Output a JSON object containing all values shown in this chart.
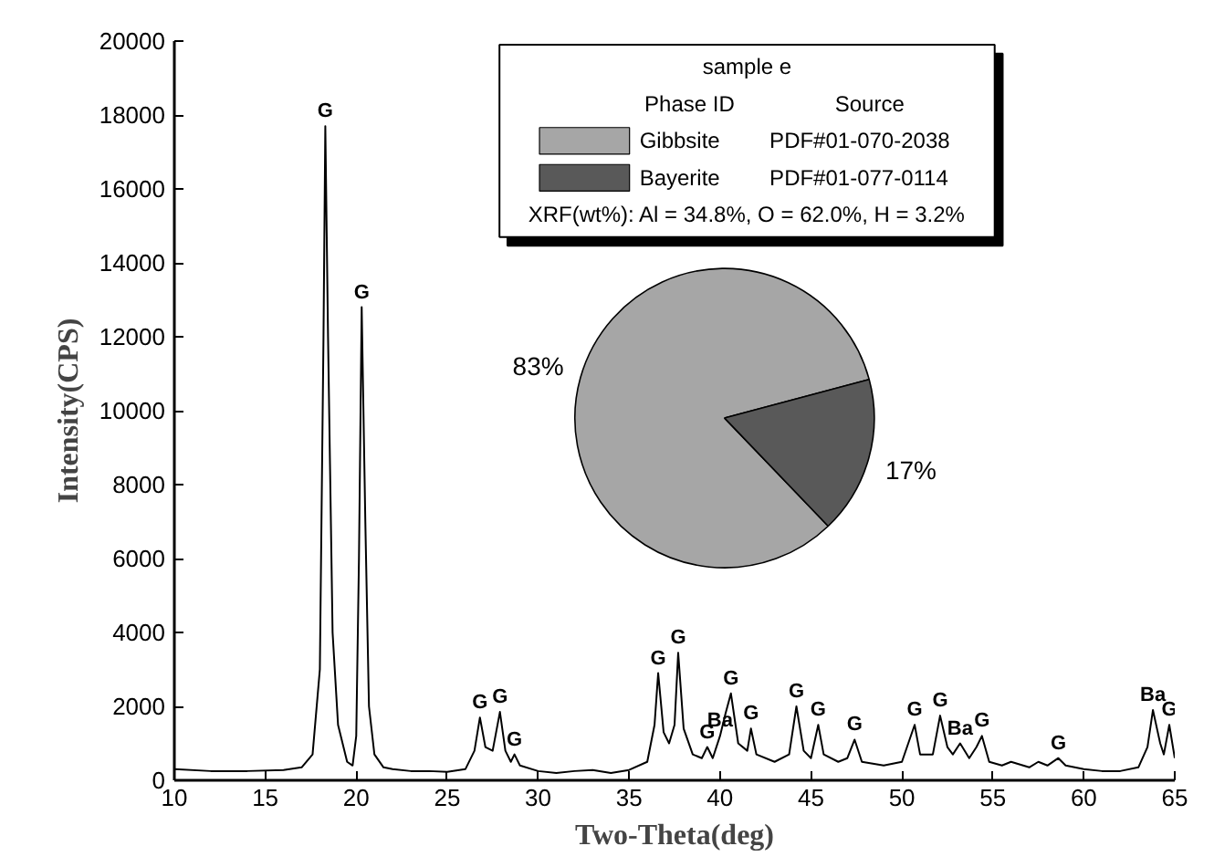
{
  "chart_data": [
    {
      "type": "line",
      "xlabel": "Two-Theta(deg)",
      "ylabel": "Intensity(CPS)",
      "xlim": [
        10,
        65
      ],
      "ylim": [
        0,
        20000
      ],
      "xticks": [
        10,
        15,
        20,
        25,
        30,
        35,
        40,
        45,
        50,
        55,
        60,
        65
      ],
      "yticks": [
        0,
        2000,
        4000,
        6000,
        8000,
        10000,
        12000,
        14000,
        16000,
        18000,
        20000
      ],
      "grid": false,
      "legend": false,
      "marker": "none",
      "line_style": "solid",
      "series": [
        {
          "color": "#000000",
          "x": [
            10,
            12,
            14,
            16,
            17,
            17.6,
            18,
            18.2,
            18.3,
            18.45,
            18.7,
            19,
            19.5,
            19.8,
            20,
            20.15,
            20.3,
            20.5,
            20.7,
            21,
            21.5,
            22,
            23,
            24,
            25,
            26,
            26.5,
            26.8,
            27.1,
            27.5,
            27.9,
            28.2,
            28.5,
            28.7,
            29,
            30,
            31,
            32,
            33,
            34,
            35,
            36,
            36.4,
            36.6,
            36.9,
            37.2,
            37.5,
            37.7,
            38,
            38.5,
            39,
            39.3,
            39.6,
            40,
            40.3,
            40.6,
            41,
            41.5,
            41.7,
            42,
            43,
            43.8,
            44.2,
            44.6,
            45,
            45.4,
            45.7,
            46.5,
            47,
            47.4,
            47.8,
            49,
            50,
            50.7,
            51,
            51.7,
            52.1,
            52.5,
            52.8,
            53.2,
            53.7,
            54.1,
            54.4,
            54.8,
            55.5,
            56,
            57,
            57.5,
            58,
            58.6,
            59,
            60,
            61,
            62,
            63,
            63.5,
            63.8,
            64.2,
            64.4,
            64.7,
            65
          ],
          "values": [
            300,
            250,
            250,
            280,
            350,
            700,
            3000,
            12000,
            17700,
            12000,
            4000,
            1500,
            500,
            400,
            1200,
            6000,
            12800,
            7000,
            2000,
            700,
            350,
            300,
            250,
            250,
            230,
            300,
            800,
            1700,
            900,
            800,
            1850,
            800,
            500,
            700,
            400,
            250,
            200,
            250,
            280,
            200,
            280,
            500,
            1500,
            2900,
            1300,
            1000,
            1500,
            3450,
            1400,
            700,
            600,
            900,
            600,
            1200,
            1800,
            2350,
            1000,
            800,
            1400,
            700,
            500,
            700,
            2000,
            800,
            600,
            1500,
            700,
            500,
            600,
            1100,
            500,
            400,
            500,
            1500,
            700,
            700,
            1750,
            900,
            700,
            1000,
            600,
            900,
            1200,
            500,
            400,
            500,
            350,
            500,
            400,
            600,
            400,
            300,
            250,
            250,
            350,
            900,
            1900,
            1000,
            700,
            1500,
            600
          ]
        }
      ],
      "annotations": [
        {
          "text": "G",
          "x": 18.3,
          "y": 17700
        },
        {
          "text": "G",
          "x": 20.3,
          "y": 12800
        },
        {
          "text": "G",
          "x": 26.8,
          "y": 1700
        },
        {
          "text": "G",
          "x": 27.9,
          "y": 1850
        },
        {
          "text": "G",
          "x": 28.7,
          "y": 700
        },
        {
          "text": "G",
          "x": 36.6,
          "y": 2900
        },
        {
          "text": "G",
          "x": 37.7,
          "y": 3450
        },
        {
          "text": "G",
          "x": 39.3,
          "y": 900
        },
        {
          "text": "Ba",
          "x": 40.0,
          "y": 1200
        },
        {
          "text": "G",
          "x": 40.6,
          "y": 2350
        },
        {
          "text": "G",
          "x": 41.7,
          "y": 1400
        },
        {
          "text": "G",
          "x": 44.2,
          "y": 2000
        },
        {
          "text": "G",
          "x": 45.4,
          "y": 1500
        },
        {
          "text": "G",
          "x": 47.4,
          "y": 1100
        },
        {
          "text": "G",
          "x": 50.7,
          "y": 1500
        },
        {
          "text": "G",
          "x": 52.1,
          "y": 1750
        },
        {
          "text": "Ba",
          "x": 53.2,
          "y": 1000
        },
        {
          "text": "G",
          "x": 54.4,
          "y": 1200
        },
        {
          "text": "G",
          "x": 58.6,
          "y": 600
        },
        {
          "text": "Ba",
          "x": 63.8,
          "y": 1900
        },
        {
          "text": "G",
          "x": 64.7,
          "y": 1500
        }
      ]
    },
    {
      "type": "pie",
      "categories": [
        "Gibbsite",
        "Bayerite"
      ],
      "values": [
        83,
        17
      ],
      "colors": [
        "#a6a6a6",
        "#595959"
      ],
      "value_labels": [
        "83%",
        "17%"
      ],
      "legend": "top",
      "legend_title": "sample e",
      "annotations": [
        "Phase ID",
        "Source",
        "PDF#01-070-2038",
        "PDF#01-077-0114",
        "XRF(wt%): Al = 34.8%, O = 62.0%, H = 3.2%"
      ]
    }
  ]
}
